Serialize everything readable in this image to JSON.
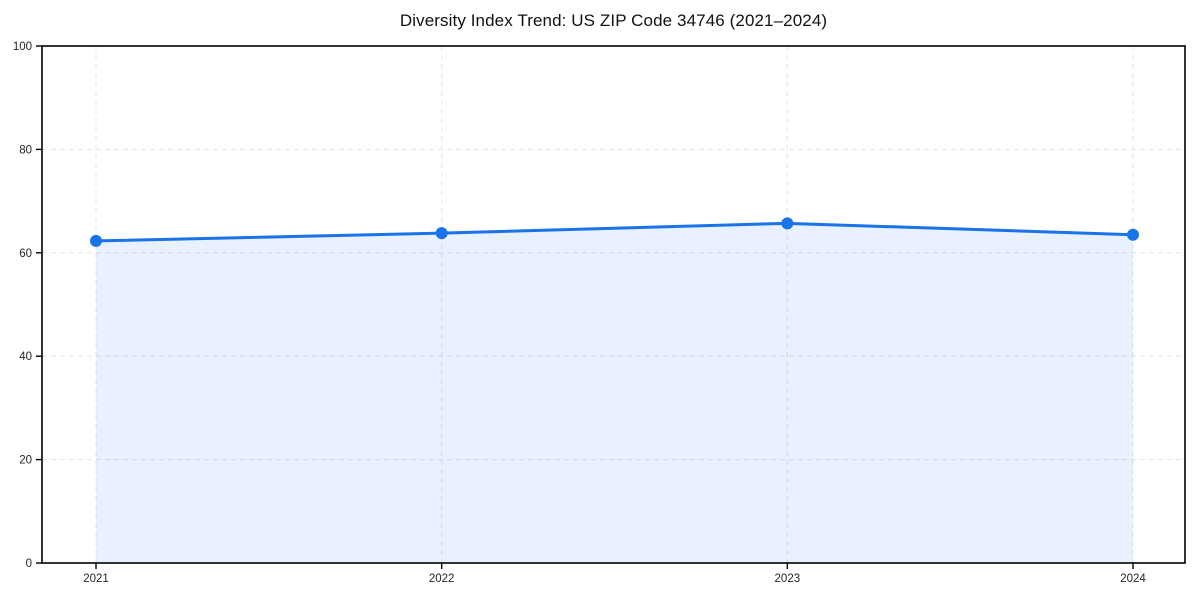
{
  "chart_data": {
    "type": "area",
    "title": "Diversity Index Trend: US ZIP Code 34746 (2021–2024)",
    "categories": [
      "2021",
      "2022",
      "2023",
      "2024"
    ],
    "series": [
      {
        "name": "Diversity Index",
        "values": [
          62.3,
          63.8,
          65.7,
          63.5
        ]
      }
    ],
    "xlabel": "",
    "ylabel": "",
    "ylim": [
      0,
      100
    ],
    "yticks": [
      0,
      20,
      40,
      60,
      80,
      100
    ],
    "grid": true,
    "grid_style": "dashed",
    "legend": "none",
    "colors": {
      "line": "#1a73e8",
      "marker": "#1a73e8",
      "fill": "#1a73e8",
      "fill_opacity": 0.1,
      "gridline": "#e4e4e4",
      "spine": "#000000",
      "tick_label": "#262626",
      "title": "#111111",
      "background": "#ffffff"
    }
  }
}
